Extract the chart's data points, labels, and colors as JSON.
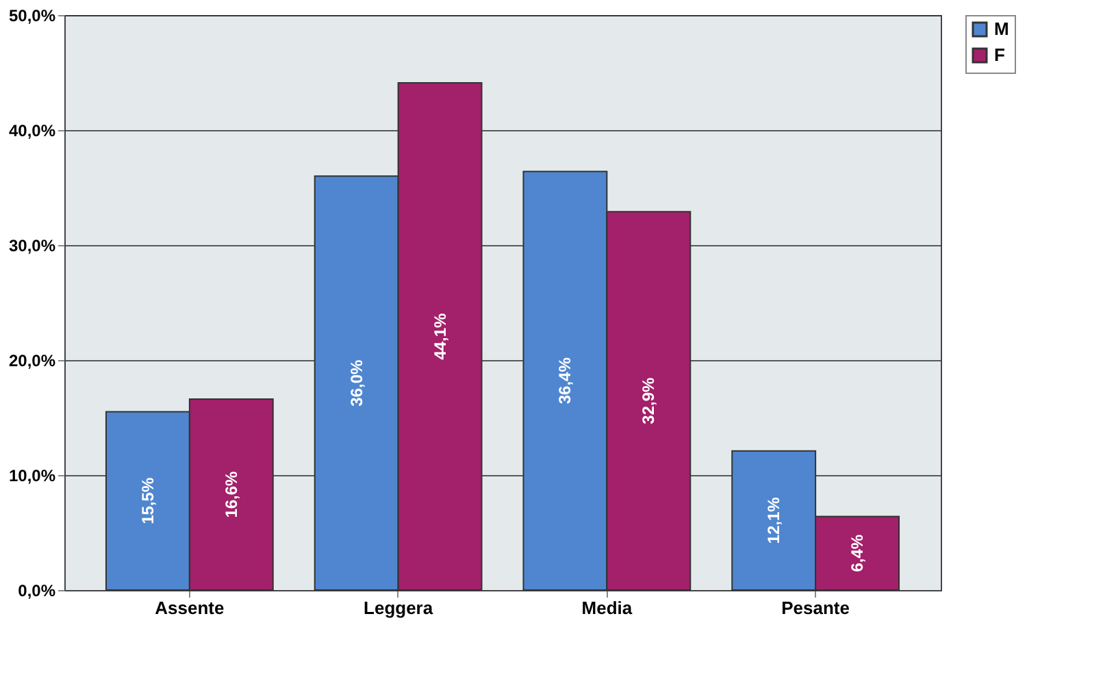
{
  "chart_data": {
    "type": "bar",
    "categories": [
      "Assente",
      "Leggera",
      "Media",
      "Pesante"
    ],
    "series": [
      {
        "name": "M",
        "color": "#4f86cf",
        "values": [
          15.5,
          36.0,
          36.4,
          12.1
        ],
        "value_labels": [
          "15,5%",
          "36,0%",
          "36,4%",
          "12,1%"
        ]
      },
      {
        "name": "F",
        "color": "#a3206a",
        "values": [
          16.6,
          44.1,
          32.9,
          6.4
        ],
        "value_labels": [
          "16,6%",
          "44,1%",
          "32,9%",
          "6,4%"
        ]
      }
    ],
    "ylim": [
      0,
      50
    ],
    "yticks": [
      {
        "value": 0,
        "label": "0,0%"
      },
      {
        "value": 10,
        "label": "10,0%"
      },
      {
        "value": 20,
        "label": "20,0%"
      },
      {
        "value": 30,
        "label": "30,0%"
      },
      {
        "value": 40,
        "label": "40,0%"
      },
      {
        "value": 50,
        "label": "50,0%"
      }
    ],
    "grid": "y",
    "legend": "right"
  }
}
